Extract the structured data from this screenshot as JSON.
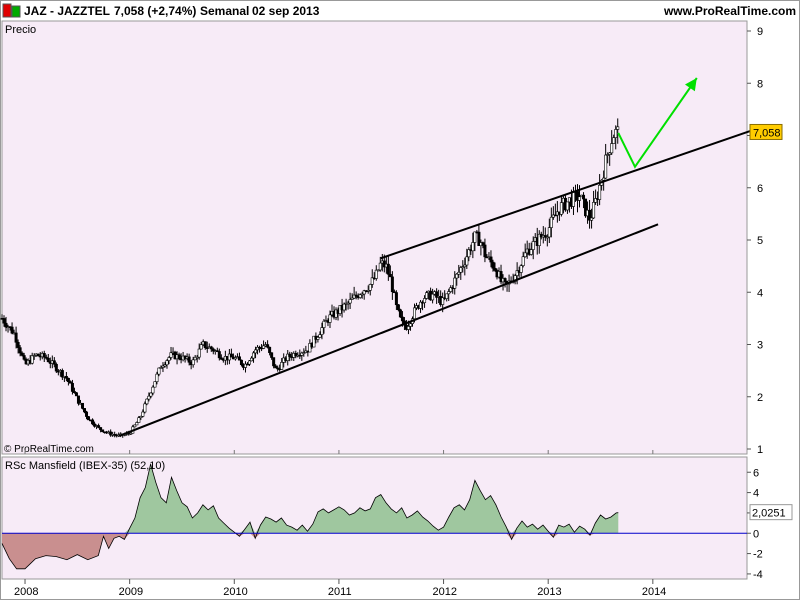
{
  "header": {
    "symbol": "JAZ - JAZZTEL",
    "price_change": "7,058 (+2,74%)",
    "period": "Semanal",
    "date": "02 sep 2013",
    "site": "www.ProRealTime.com"
  },
  "colors": {
    "panel_bg": "#f7ebf7",
    "frame": "#999999",
    "candles": "#000000",
    "trendlines": "#000000",
    "projection": "#00e000",
    "rs_positive_fill": "#9fc79f",
    "rs_negative_fill": "#c98f8f",
    "zero_line": "#0000cc",
    "last_price_bg": "#ffcc00"
  },
  "chart_data": [
    {
      "type": "candlestick",
      "title": "Precio",
      "copyright": "© ProRealTime.com",
      "x_tick_labels": [
        "2008",
        "2009",
        "2010",
        "2011",
        "2012",
        "2013",
        "2014"
      ],
      "x_ticks": [
        2008.0,
        2009.0,
        2010.0,
        2011.0,
        2012.0,
        2013.0,
        2014.0
      ],
      "xlim": [
        2007.78,
        2014.9
      ],
      "y_tick_labels": [
        "1",
        "2",
        "3",
        "4",
        "5",
        "6",
        "7",
        "8",
        "9"
      ],
      "ylim": [
        1.0,
        9.0
      ],
      "last_value_label": "7,058",
      "last_value": 7.058,
      "price_anchors": [
        [
          2007.78,
          3.5
        ],
        [
          2007.9,
          3.2
        ],
        [
          2008.0,
          2.6
        ],
        [
          2008.1,
          2.8
        ],
        [
          2008.2,
          2.75
        ],
        [
          2008.3,
          2.55
        ],
        [
          2008.4,
          2.35
        ],
        [
          2008.5,
          1.95
        ],
        [
          2008.6,
          1.6
        ],
        [
          2008.7,
          1.4
        ],
        [
          2008.8,
          1.3
        ],
        [
          2008.9,
          1.25
        ],
        [
          2009.0,
          1.3
        ],
        [
          2009.1,
          1.6
        ],
        [
          2009.2,
          2.1
        ],
        [
          2009.3,
          2.6
        ],
        [
          2009.4,
          2.8
        ],
        [
          2009.5,
          2.75
        ],
        [
          2009.6,
          2.65
        ],
        [
          2009.7,
          3.0
        ],
        [
          2009.8,
          2.9
        ],
        [
          2009.9,
          2.75
        ],
        [
          2010.0,
          2.75
        ],
        [
          2010.1,
          2.6
        ],
        [
          2010.2,
          2.9
        ],
        [
          2010.3,
          3.0
        ],
        [
          2010.4,
          2.5
        ],
        [
          2010.5,
          2.75
        ],
        [
          2010.6,
          2.85
        ],
        [
          2010.7,
          2.9
        ],
        [
          2010.8,
          3.2
        ],
        [
          2010.9,
          3.5
        ],
        [
          2011.0,
          3.65
        ],
        [
          2011.1,
          3.8
        ],
        [
          2011.2,
          4.0
        ],
        [
          2011.3,
          4.15
        ],
        [
          2011.35,
          4.3
        ],
        [
          2011.4,
          4.55
        ],
        [
          2011.45,
          4.5
        ],
        [
          2011.5,
          4.2
        ],
        [
          2011.55,
          3.7
        ],
        [
          2011.6,
          3.4
        ],
        [
          2011.65,
          3.35
        ],
        [
          2011.7,
          3.55
        ],
        [
          2011.8,
          3.9
        ],
        [
          2011.9,
          3.95
        ],
        [
          2012.0,
          3.8
        ],
        [
          2012.1,
          4.2
        ],
        [
          2012.2,
          4.6
        ],
        [
          2012.3,
          5.05
        ],
        [
          2012.35,
          5.0
        ],
        [
          2012.4,
          4.7
        ],
        [
          2012.5,
          4.45
        ],
        [
          2012.55,
          4.2
        ],
        [
          2012.6,
          4.1
        ],
        [
          2012.7,
          4.4
        ],
        [
          2012.8,
          4.8
        ],
        [
          2012.9,
          5.0
        ],
        [
          2013.0,
          5.2
        ],
        [
          2013.1,
          5.6
        ],
        [
          2013.2,
          5.75
        ],
        [
          2013.3,
          5.85
        ],
        [
          2013.35,
          5.6
        ],
        [
          2013.4,
          5.4
        ],
        [
          2013.45,
          5.7
        ],
        [
          2013.5,
          6.1
        ],
        [
          2013.55,
          6.5
        ],
        [
          2013.6,
          6.9
        ],
        [
          2013.63,
          7.05
        ],
        [
          2013.67,
          7.058
        ]
      ],
      "trend_channel": [
        {
          "name": "upper",
          "start": [
            2011.4,
            4.65
          ],
          "end": [
            2014.95,
            7.1
          ]
        },
        {
          "name": "lower",
          "start": [
            2008.9,
            1.25
          ],
          "end": [
            2014.05,
            5.3
          ]
        }
      ],
      "projection_path": [
        [
          2013.67,
          7.05
        ],
        [
          2013.83,
          6.4
        ],
        [
          2014.42,
          8.1
        ]
      ]
    },
    {
      "type": "area",
      "title": "RSc Mansfield (IBEX-35) (52,10)",
      "x_tick_labels": [
        "2008",
        "2009",
        "2010",
        "2011",
        "2012",
        "2013",
        "2014"
      ],
      "y_tick_labels": [
        "6",
        "4",
        "2",
        "0",
        "-2",
        "-4"
      ],
      "yticks": [
        6,
        4,
        2,
        0,
        -2,
        -4
      ],
      "ylim": [
        -4.5,
        7.5
      ],
      "last_value_label": "2,0251",
      "last_value": 2.0251,
      "series": [
        {
          "points": [
            [
              2007.78,
              -1.0
            ],
            [
              2007.85,
              -2.5
            ],
            [
              2007.92,
              -3.5
            ],
            [
              2008.0,
              -3.5
            ],
            [
              2008.1,
              -2.5
            ],
            [
              2008.2,
              -2.2
            ],
            [
              2008.3,
              -2.3
            ],
            [
              2008.4,
              -2.6
            ],
            [
              2008.5,
              -2.1
            ],
            [
              2008.6,
              -2.6
            ],
            [
              2008.7,
              -2.2
            ],
            [
              2008.75,
              -0.3
            ],
            [
              2008.8,
              -1.5
            ],
            [
              2008.85,
              -0.5
            ],
            [
              2008.9,
              -0.3
            ],
            [
              2008.95,
              -0.6
            ],
            [
              2009.0,
              0.5
            ],
            [
              2009.05,
              1.5
            ],
            [
              2009.1,
              3.5
            ],
            [
              2009.15,
              4.5
            ],
            [
              2009.2,
              6.8
            ],
            [
              2009.25,
              5.0
            ],
            [
              2009.3,
              3.5
            ],
            [
              2009.35,
              3.0
            ],
            [
              2009.4,
              5.5
            ],
            [
              2009.45,
              4.2
            ],
            [
              2009.5,
              3.0
            ],
            [
              2009.55,
              2.6
            ],
            [
              2009.6,
              1.5
            ],
            [
              2009.65,
              2.0
            ],
            [
              2009.7,
              2.8
            ],
            [
              2009.75,
              2.3
            ],
            [
              2009.8,
              2.7
            ],
            [
              2009.85,
              1.5
            ],
            [
              2009.9,
              1.0
            ],
            [
              2009.95,
              0.5
            ],
            [
              2010.0,
              0.1
            ],
            [
              2010.05,
              -0.3
            ],
            [
              2010.1,
              0.4
            ],
            [
              2010.15,
              1.1
            ],
            [
              2010.2,
              -0.5
            ],
            [
              2010.25,
              0.8
            ],
            [
              2010.3,
              1.6
            ],
            [
              2010.35,
              1.4
            ],
            [
              2010.4,
              1.1
            ],
            [
              2010.45,
              1.5
            ],
            [
              2010.5,
              0.8
            ],
            [
              2010.55,
              0.6
            ],
            [
              2010.6,
              0.3
            ],
            [
              2010.65,
              0.8
            ],
            [
              2010.7,
              0.2
            ],
            [
              2010.75,
              0.9
            ],
            [
              2010.8,
              2.1
            ],
            [
              2010.85,
              2.4
            ],
            [
              2010.9,
              2.0
            ],
            [
              2010.95,
              2.3
            ],
            [
              2011.0,
              2.6
            ],
            [
              2011.05,
              2.3
            ],
            [
              2011.1,
              1.8
            ],
            [
              2011.15,
              2.0
            ],
            [
              2011.2,
              2.5
            ],
            [
              2011.25,
              2.2
            ],
            [
              2011.3,
              2.4
            ],
            [
              2011.35,
              3.5
            ],
            [
              2011.4,
              3.8
            ],
            [
              2011.45,
              3.0
            ],
            [
              2011.5,
              2.4
            ],
            [
              2011.55,
              2.0
            ],
            [
              2011.6,
              2.5
            ],
            [
              2011.65,
              1.5
            ],
            [
              2011.7,
              1.8
            ],
            [
              2011.75,
              2.2
            ],
            [
              2011.8,
              1.6
            ],
            [
              2011.85,
              1.2
            ],
            [
              2011.9,
              0.7
            ],
            [
              2011.95,
              0.3
            ],
            [
              2012.0,
              0.6
            ],
            [
              2012.05,
              1.6
            ],
            [
              2012.1,
              2.5
            ],
            [
              2012.15,
              2.8
            ],
            [
              2012.2,
              2.3
            ],
            [
              2012.25,
              3.3
            ],
            [
              2012.3,
              5.2
            ],
            [
              2012.35,
              4.2
            ],
            [
              2012.4,
              3.3
            ],
            [
              2012.45,
              3.7
            ],
            [
              2012.5,
              2.8
            ],
            [
              2012.55,
              1.6
            ],
            [
              2012.6,
              0.6
            ],
            [
              2012.65,
              -0.6
            ],
            [
              2012.7,
              0.5
            ],
            [
              2012.75,
              1.2
            ],
            [
              2012.8,
              0.6
            ],
            [
              2012.85,
              0.9
            ],
            [
              2012.9,
              0.4
            ],
            [
              2012.95,
              0.8
            ],
            [
              2013.0,
              0.2
            ],
            [
              2013.05,
              -0.4
            ],
            [
              2013.1,
              0.8
            ],
            [
              2013.15,
              0.6
            ],
            [
              2013.2,
              0.9
            ],
            [
              2013.25,
              0.1
            ],
            [
              2013.3,
              0.7
            ],
            [
              2013.35,
              0.4
            ],
            [
              2013.4,
              -0.2
            ],
            [
              2013.45,
              1.0
            ],
            [
              2013.5,
              1.8
            ],
            [
              2013.55,
              1.4
            ],
            [
              2013.6,
              1.6
            ],
            [
              2013.65,
              2.0
            ],
            [
              2013.67,
              2.0251
            ]
          ]
        }
      ]
    }
  ]
}
